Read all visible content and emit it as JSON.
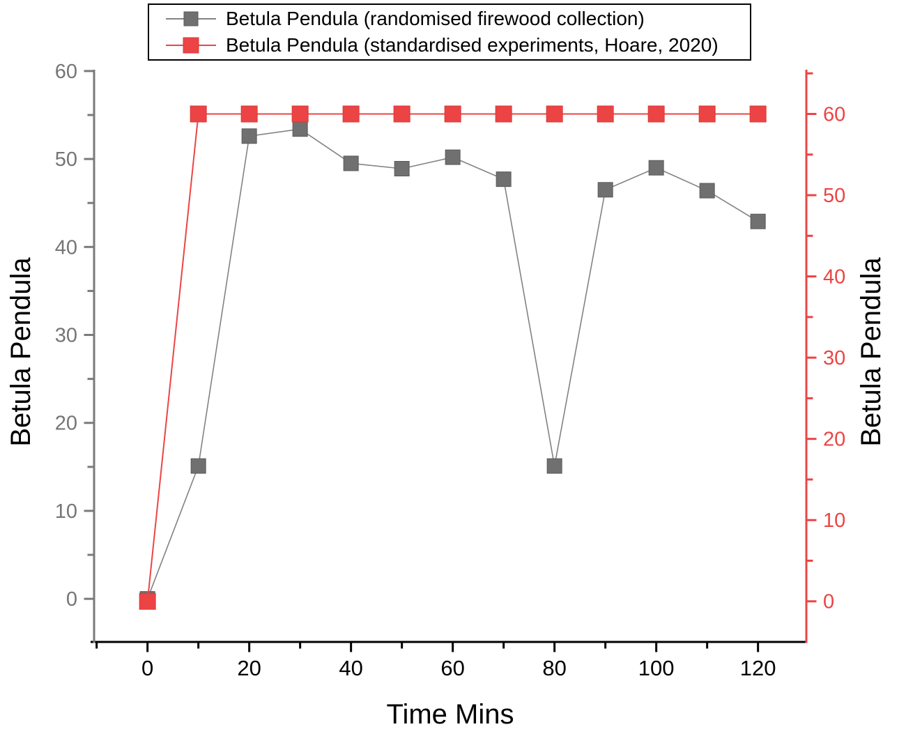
{
  "figure": {
    "background": "#ffffff"
  },
  "chart_data": {
    "type": "line",
    "title": "",
    "xlabel": "Time Mins",
    "ylabel_left": "Betula Pendula",
    "ylabel_right": "Betula Pendula",
    "legend_position": "top-center",
    "grid": false,
    "x": [
      0,
      10,
      20,
      30,
      40,
      50,
      60,
      70,
      80,
      90,
      100,
      110,
      120
    ],
    "axes": {
      "x": {
        "label": "Time Mins",
        "range": [
          -10.5,
          129.5
        ],
        "major_step": 20,
        "minor_step": 10,
        "color": "#000000",
        "tick_label_color": "#000000"
      },
      "left": {
        "label": "Betula Pendula",
        "range": [
          -4.9,
          60.15
        ],
        "major_step": 10,
        "minor_step": 5,
        "color": "#7a7a7a",
        "tick_label_color": "#757575"
      },
      "right": {
        "label": "Betula Pendula",
        "range": [
          -5.0,
          65.45
        ],
        "major_step": 10,
        "minor_step": 5,
        "color": "#ec4444",
        "tick_label_color": "#ec4444"
      }
    },
    "series": [
      {
        "name": "Betula Pendula (randomised firewood collection)",
        "axis": "left",
        "marker": "square",
        "marker_size": 21,
        "marker_color": "#707070",
        "marker_edge": "#5a5a5a",
        "line_color": "#828282",
        "line_width": 1.6,
        "values": [
          0,
          15.1,
          52.6,
          53.4,
          49.5,
          48.9,
          50.2,
          47.7,
          15.1,
          46.5,
          49.0,
          46.4,
          42.9
        ]
      },
      {
        "name": "Betula Pendula (standardised experiments, Hoare, 2020)",
        "axis": "right",
        "marker": "square",
        "marker_size": 23,
        "marker_color": "#ec4444",
        "marker_edge": "#d83a3a",
        "line_color": "#ec4444",
        "line_width": 2,
        "values": [
          0,
          60,
          60,
          60,
          60,
          60,
          60,
          60,
          60,
          60,
          60,
          60,
          60
        ]
      }
    ]
  }
}
